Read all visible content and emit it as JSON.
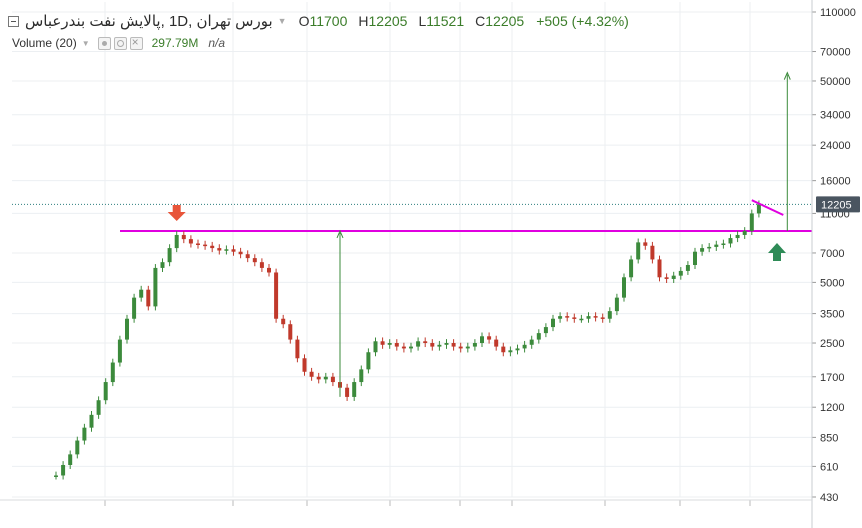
{
  "legend": {
    "title": "بورس تهران ,1D ,پالایش نفت بندرعباس",
    "ohlc": [
      {
        "label": "O",
        "value": "11700"
      },
      {
        "label": "H",
        "value": "12205"
      },
      {
        "label": "L",
        "value": "11521"
      },
      {
        "label": "C",
        "value": "12205"
      }
    ],
    "change": "+505 (+4.32%)"
  },
  "volume": {
    "label": "Volume (20)",
    "value": "297.79M",
    "extra": "n/a"
  },
  "colors": {
    "up": "#3c8a3c",
    "down": "#c0392b",
    "pattern_line": "#e000e0",
    "target_arrow": "#3a8a3a",
    "down_arrow": "#e8553a",
    "up_arrow": "#2e8b57",
    "price_badge": "#4a5560",
    "dotted_line": "#2f7f7f",
    "grid": "#eceff2"
  },
  "chart_data": {
    "type": "line",
    "y_scale": "log",
    "ylim": [
      430,
      110000
    ],
    "y_ticks": [
      "110000",
      "70000",
      "50000",
      "34000",
      "24000",
      "16000",
      "11000",
      "7000",
      "5000",
      "3500",
      "2500",
      "1700",
      "1200",
      "850",
      "610",
      "430"
    ],
    "current_price": "12205",
    "resistance_level": 9000,
    "series": [
      {
        "x": [
          1,
          2,
          3,
          4,
          5,
          6,
          7,
          8,
          9,
          10,
          11,
          12,
          13,
          14,
          15,
          16,
          17,
          18,
          19,
          20,
          21,
          22,
          23,
          24,
          25,
          26,
          27,
          28,
          29,
          30,
          31,
          32,
          33,
          34,
          35,
          36,
          37,
          38,
          39,
          40,
          41,
          42,
          43,
          44,
          45,
          46,
          47,
          48,
          49,
          50,
          51,
          52,
          53,
          54,
          55,
          56,
          57,
          58,
          59,
          60,
          61,
          62,
          63,
          64,
          65,
          66,
          67,
          68,
          69,
          70,
          71,
          72,
          73,
          74,
          75,
          76,
          77,
          78,
          79,
          80,
          81,
          82,
          83,
          84,
          85,
          86,
          87,
          88,
          89,
          90,
          91,
          92,
          93,
          94,
          95,
          96,
          97,
          98,
          99,
          100
        ],
        "values": [
          550,
          620,
          700,
          820,
          950,
          1100,
          1300,
          1600,
          2000,
          2600,
          3300,
          4200,
          4600,
          3800,
          5900,
          6300,
          7400,
          8600,
          8200,
          7800,
          7700,
          7600,
          7400,
          7200,
          7300,
          7100,
          6900,
          6600,
          6300,
          5900,
          5600,
          3300,
          3100,
          2600,
          2100,
          1800,
          1700,
          1650,
          1700,
          1600,
          1500,
          1350,
          1600,
          1850,
          2250,
          2550,
          2450,
          2500,
          2400,
          2350,
          2400,
          2550,
          2500,
          2400,
          2450,
          2500,
          2400,
          2350,
          2400,
          2500,
          2700,
          2600,
          2400,
          2250,
          2300,
          2350,
          2450,
          2600,
          2800,
          3000,
          3300,
          3400,
          3350,
          3300,
          3300,
          3400,
          3350,
          3300,
          3600,
          4200,
          5300,
          6500,
          7900,
          7600,
          6500,
          5300,
          5200,
          5400,
          5700,
          6100,
          7100,
          7400,
          7500,
          7700,
          7800,
          8300,
          8600,
          9000,
          11000,
          12205
        ]
      }
    ],
    "annotations": {
      "target_arrows": [
        {
          "x": 41,
          "from": 1350,
          "to": 9000
        },
        {
          "x": 104,
          "from": 9000,
          "to": 55000
        }
      ],
      "pennant_x": [
        99,
        104
      ]
    }
  }
}
